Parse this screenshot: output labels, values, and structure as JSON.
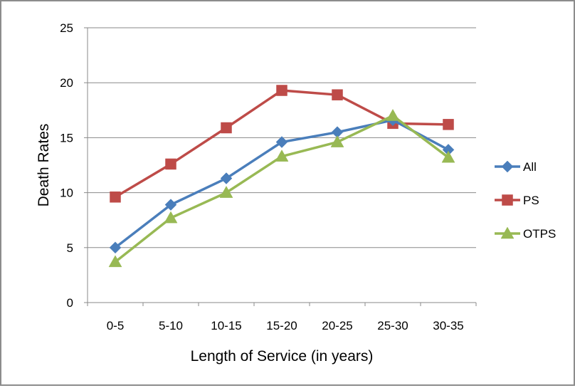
{
  "chart_data": {
    "type": "line",
    "title": "",
    "xlabel": "Length of Service (in years)",
    "ylabel": "Death Rates",
    "categories": [
      "0-5",
      "5-10",
      "10-15",
      "15-20",
      "20-25",
      "25-30",
      "30-35"
    ],
    "ylim": [
      0,
      25
    ],
    "yticks": [
      "0",
      "5",
      "10",
      "15",
      "20",
      "25"
    ],
    "grid": true,
    "legend_position": "right",
    "series": [
      {
        "name": "All",
        "color": "#4a7ebb",
        "marker": "diamond",
        "values": [
          5.0,
          8.9,
          11.3,
          14.6,
          15.5,
          16.6,
          13.9
        ]
      },
      {
        "name": "PS",
        "color": "#be4b48",
        "marker": "square",
        "values": [
          9.6,
          12.6,
          15.9,
          19.3,
          18.9,
          16.3,
          16.2
        ]
      },
      {
        "name": "OTPS",
        "color": "#98b954",
        "marker": "triangle",
        "values": [
          3.7,
          7.7,
          10.0,
          13.3,
          14.6,
          17.0,
          13.2
        ]
      }
    ]
  }
}
